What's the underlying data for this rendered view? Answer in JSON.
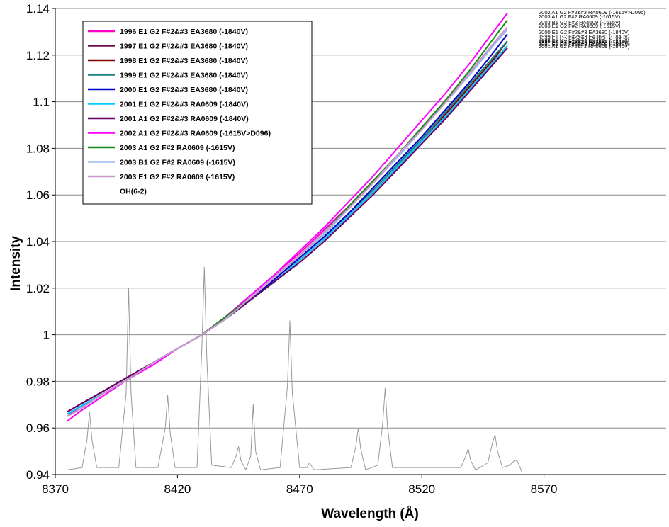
{
  "chart_data": {
    "type": "line",
    "xlabel": "Wavelength (Å)",
    "ylabel": "Intensity",
    "xlim": [
      8370,
      8620
    ],
    "ylim": [
      0.94,
      1.14
    ],
    "x_ticks": [
      "8370",
      "8420",
      "8470",
      "8520",
      "8570"
    ],
    "y_ticks": [
      "0.94",
      "0.96",
      "0.98",
      "1",
      "1.02",
      "1.04",
      "1.06",
      "1.08",
      "1.1",
      "1.12",
      "1.14"
    ],
    "grid": "horizontal",
    "legend_position": "top-left",
    "series": [
      {
        "name": "1996 E1 G2 F#2&#3 EA3680 (-1840V)",
        "color": "#ff00cc",
        "x": [
          8375,
          8380,
          8390,
          8400,
          8410,
          8420,
          8430,
          8440,
          8450,
          8460,
          8470,
          8480,
          8490,
          8500,
          8510,
          8520,
          8530,
          8540,
          8550,
          8555
        ],
        "y": [
          0.965,
          0.969,
          0.975,
          0.981,
          0.988,
          0.994,
          1.0,
          1.008,
          1.017,
          1.026,
          1.035,
          1.045,
          1.055,
          1.066,
          1.077,
          1.089,
          1.101,
          1.113,
          1.125,
          1.131
        ]
      },
      {
        "name": "1997 E1 G2 F#2&#3 EA3680 (-1840V)",
        "color": "#6b0f4f",
        "x": [
          8375,
          8380,
          8390,
          8400,
          8410,
          8420,
          8430,
          8440,
          8450,
          8460,
          8470,
          8480,
          8490,
          8500,
          8510,
          8520,
          8530,
          8540,
          8550,
          8555
        ],
        "y": [
          0.967,
          0.97,
          0.976,
          0.982,
          0.988,
          0.994,
          1.0,
          1.007,
          1.015,
          1.023,
          1.032,
          1.041,
          1.051,
          1.061,
          1.072,
          1.083,
          1.094,
          1.106,
          1.118,
          1.124
        ]
      },
      {
        "name": "1998 E1 G2 F#2&#3 EA3680 (-1840V)",
        "color": "#7f0000",
        "x": [
          8375,
          8380,
          8390,
          8400,
          8410,
          8420,
          8430,
          8440,
          8450,
          8460,
          8470,
          8480,
          8490,
          8500,
          8510,
          8520,
          8530,
          8540,
          8550,
          8555
        ],
        "y": [
          0.967,
          0.97,
          0.976,
          0.982,
          0.988,
          0.994,
          1.0,
          1.007,
          1.015,
          1.023,
          1.032,
          1.041,
          1.051,
          1.061,
          1.072,
          1.083,
          1.095,
          1.107,
          1.119,
          1.126
        ]
      },
      {
        "name": "1999 E1 G2 F#2&#3 EA3680 (-1840V)",
        "color": "#1a8080",
        "x": [
          8375,
          8380,
          8390,
          8400,
          8410,
          8420,
          8430,
          8440,
          8450,
          8460,
          8470,
          8480,
          8490,
          8500,
          8510,
          8520,
          8530,
          8540,
          8550,
          8555
        ],
        "y": [
          0.966,
          0.969,
          0.975,
          0.981,
          0.988,
          0.994,
          1.0,
          1.007,
          1.015,
          1.024,
          1.033,
          1.042,
          1.052,
          1.062,
          1.073,
          1.084,
          1.096,
          1.108,
          1.12,
          1.126
        ]
      },
      {
        "name": "2000 E1 G2 F#2&#3 EA3680 (-1840V)",
        "color": "#0000cc",
        "x": [
          8375,
          8380,
          8390,
          8400,
          8410,
          8420,
          8430,
          8440,
          8450,
          8460,
          8470,
          8480,
          8490,
          8500,
          8510,
          8520,
          8530,
          8540,
          8550,
          8555
        ],
        "y": [
          0.966,
          0.969,
          0.975,
          0.981,
          0.988,
          0.994,
          1.0,
          1.007,
          1.015,
          1.024,
          1.033,
          1.042,
          1.052,
          1.063,
          1.074,
          1.085,
          1.097,
          1.109,
          1.122,
          1.129
        ]
      },
      {
        "name": "2001 E1 G2 F#2&#3 RA0609 (-1840V)",
        "color": "#00ccff",
        "x": [
          8375,
          8380,
          8390,
          8400,
          8410,
          8420,
          8430,
          8440,
          8450,
          8460,
          8470,
          8480,
          8490,
          8500,
          8510,
          8520,
          8530,
          8540,
          8550,
          8555
        ],
        "y": [
          0.966,
          0.969,
          0.975,
          0.981,
          0.988,
          0.994,
          1.0,
          1.007,
          1.015,
          1.023,
          1.032,
          1.041,
          1.051,
          1.061,
          1.072,
          1.083,
          1.094,
          1.106,
          1.118,
          1.124
        ]
      },
      {
        "name": "2001 A1 G2 F#2&#3 RA0609 (-1840V)",
        "color": "#660066",
        "x": [
          8375,
          8380,
          8390,
          8400,
          8410,
          8420,
          8430,
          8440,
          8450,
          8460,
          8470,
          8480,
          8490,
          8500,
          8510,
          8520,
          8530,
          8540,
          8550,
          8555
        ],
        "y": [
          0.967,
          0.97,
          0.976,
          0.982,
          0.988,
          0.994,
          1.0,
          1.007,
          1.015,
          1.023,
          1.031,
          1.04,
          1.05,
          1.06,
          1.071,
          1.082,
          1.093,
          1.105,
          1.117,
          1.123
        ]
      },
      {
        "name": "2002 A1 G2 F#2&#3 RA0609 (-1615V>D096)",
        "color": "#ff00ff",
        "x": [
          8375,
          8380,
          8390,
          8400,
          8410,
          8420,
          8430,
          8440,
          8450,
          8460,
          8470,
          8480,
          8490,
          8500,
          8510,
          8520,
          8530,
          8540,
          8550,
          8555
        ],
        "y": [
          0.963,
          0.967,
          0.974,
          0.981,
          0.987,
          0.994,
          1.0,
          1.008,
          1.017,
          1.026,
          1.036,
          1.046,
          1.057,
          1.068,
          1.08,
          1.092,
          1.104,
          1.117,
          1.131,
          1.138
        ]
      },
      {
        "name": "2003 A1 G2 F#2 RA0609 (-1615V)",
        "color": "#1a8c1a",
        "x": [
          8375,
          8380,
          8390,
          8400,
          8410,
          8420,
          8430,
          8440,
          8450,
          8460,
          8470,
          8480,
          8490,
          8500,
          8510,
          8520,
          8530,
          8540,
          8550,
          8555
        ],
        "y": [
          0.965,
          0.968,
          0.975,
          0.981,
          0.988,
          0.994,
          1.0,
          1.008,
          1.016,
          1.025,
          1.034,
          1.044,
          1.055,
          1.066,
          1.077,
          1.089,
          1.101,
          1.114,
          1.128,
          1.135
        ]
      },
      {
        "name": "2003 B1 G2 F#2 RA0609 (-1615V)",
        "color": "#99bbee",
        "x": [
          8375,
          8380,
          8390,
          8400,
          8410,
          8420,
          8430,
          8440,
          8450,
          8460,
          8470,
          8480,
          8490,
          8500,
          8510,
          8520,
          8530,
          8540,
          8550,
          8555
        ],
        "y": [
          0.965,
          0.968,
          0.975,
          0.981,
          0.988,
          0.994,
          1.0,
          1.007,
          1.016,
          1.025,
          1.034,
          1.043,
          1.054,
          1.065,
          1.076,
          1.088,
          1.1,
          1.112,
          1.125,
          1.131
        ]
      },
      {
        "name": "2003 E1 G2 F#2 RA0609 (-1615V)",
        "color": "#cc99cc",
        "x": [
          8375,
          8380,
          8390,
          8400,
          8410,
          8420,
          8430,
          8440,
          8450,
          8460,
          8470,
          8480,
          8490,
          8500,
          8510,
          8520,
          8530,
          8540,
          8550,
          8555
        ],
        "y": [
          0.965,
          0.968,
          0.975,
          0.981,
          0.988,
          0.994,
          1.0,
          1.007,
          1.016,
          1.025,
          1.034,
          1.044,
          1.054,
          1.065,
          1.077,
          1.088,
          1.1,
          1.113,
          1.126,
          1.132
        ]
      },
      {
        "name": "OH(6-2)",
        "color": "#999999",
        "x": [
          8375,
          8381,
          8383,
          8384,
          8385,
          8387,
          8396,
          8399,
          8400,
          8401,
          8403,
          8412,
          8415,
          8416,
          8417,
          8419,
          8428,
          8430,
          8431,
          8432,
          8434,
          8442,
          8444,
          8445,
          8446,
          8448,
          8450,
          8451,
          8452,
          8454,
          8462,
          8465,
          8466,
          8467,
          8470,
          8473,
          8474,
          8476,
          8491,
          8493,
          8494,
          8495,
          8497,
          8502,
          8504,
          8505,
          8506,
          8508,
          8536,
          8538,
          8539,
          8540,
          8542,
          8547,
          8549,
          8550,
          8551,
          8553,
          8556,
          8558,
          8559,
          8561
        ],
        "y": [
          0.942,
          0.943,
          0.955,
          0.967,
          0.955,
          0.943,
          0.943,
          0.975,
          1.02,
          0.975,
          0.943,
          0.943,
          0.96,
          0.974,
          0.958,
          0.943,
          0.943,
          0.995,
          1.029,
          0.99,
          0.944,
          0.943,
          0.948,
          0.952,
          0.946,
          0.942,
          0.948,
          0.97,
          0.95,
          0.942,
          0.943,
          0.978,
          1.006,
          0.975,
          0.943,
          0.943,
          0.945,
          0.942,
          0.943,
          0.952,
          0.96,
          0.951,
          0.942,
          0.944,
          0.962,
          0.977,
          0.96,
          0.943,
          0.943,
          0.948,
          0.951,
          0.946,
          0.942,
          0.945,
          0.954,
          0.957,
          0.95,
          0.943,
          0.944,
          0.946,
          0.946,
          0.941
        ]
      }
    ],
    "end_labels": [
      "2002 A1 G2 F#2&#3 RA0609 (-1615V>D096)",
      "2003 A1 G2 F#2 RA0609 (-1615V)",
      "2003 B1 G2 F#2 RA0609 (-1615V)",
      "2003 E1 G2 F#2 RA0609 (-1615V)",
      "2000 E1 G2 F#2&#3 EA3680 (-1840V)",
      "1999 E1 G2 F#2&#3 EA3680 (-1840V)",
      "1998 E1 G2 F#2&#3 EA3680 (-1840V)",
      "1996 E1 G2 F#2&#3 EA3680 (-1840V)",
      "1997 E1 G2 F#2&#3 EA3680 (-1840V)",
      "2001 E1 G2 F#2&#3 RA0609 (-1840V)",
      "2001 A1 G2 F#2&#3 RA0609 (-1840V)"
    ]
  }
}
